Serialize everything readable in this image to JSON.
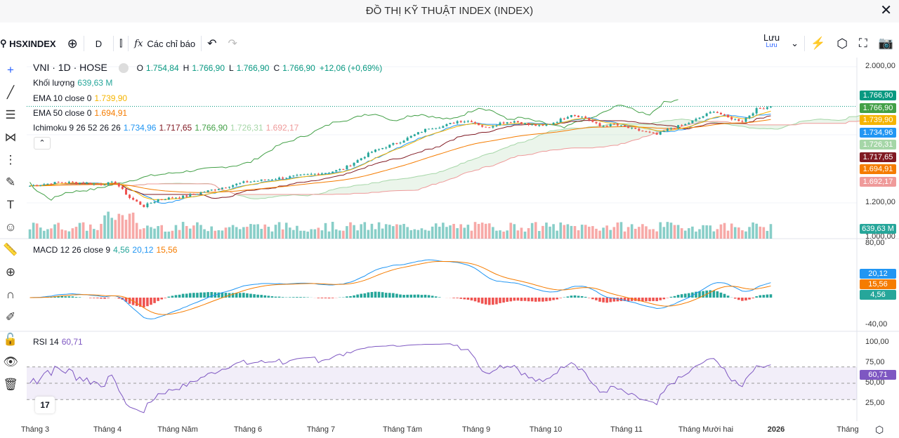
{
  "window": {
    "title": "ĐỒ THỊ KỸ THUẬT INDEX (INDEX)",
    "close": "✕"
  },
  "toolbar": {
    "symbol": "HSXINDEX",
    "interval": "D",
    "indicators": "Các chỉ báo",
    "save": "Lưu",
    "save_sub": "Lưu"
  },
  "legend": {
    "main": {
      "name": "VNI · 1D · HOSE",
      "o_label": "O",
      "o": "1.754,84",
      "h_label": "H",
      "h": "1.766,90",
      "l_label": "L",
      "l": "1.766,90",
      "c_label": "C",
      "c": "1.766,90",
      "change": "+12,06 (+0,69%)"
    },
    "volume": {
      "name": "Khối lượng",
      "value": "639,63 M"
    },
    "ema10": {
      "name": "EMA 10 close 0",
      "value": "1.739,90"
    },
    "ema50": {
      "name": "EMA 50 close 0",
      "value": "1.694,91"
    },
    "ichimoku": {
      "name": "Ichimoku 9 26 52 26 26",
      "v1": "1.734,96",
      "v2": "1.717,65",
      "v3": "1.766,90",
      "v4": "1.726,31",
      "v5": "1.692,17"
    },
    "macd": {
      "name": "MACD 12 26 close 9",
      "v1": "4,56",
      "v2": "20,12",
      "v3": "15,56"
    },
    "rsi": {
      "name": "RSI 14",
      "value": "60,71"
    }
  },
  "colors": {
    "up": "#26a69a",
    "down": "#ef5350",
    "ema10": "#f5b400",
    "ema50": "#f57c00",
    "conv": "#2196f3",
    "base": "#801922",
    "lag": "#43a047",
    "spanA": "#a5d6a7",
    "spanB": "#ef9a9a",
    "rsi": "#7e57c2"
  },
  "price_labels": [
    {
      "v": "1.766,90",
      "c": "#089981"
    },
    {
      "v": "1.766,90",
      "c": "#43a047"
    },
    {
      "v": "1.739,90",
      "c": "#f5b400"
    },
    {
      "v": "1.734,96",
      "c": "#2196f3"
    },
    {
      "v": "1.726,31",
      "c": "#a5d6a7"
    },
    {
      "v": "1.717,65",
      "c": "#801922"
    },
    {
      "v": "1.694,91",
      "c": "#f57c00"
    },
    {
      "v": "1.692,17",
      "c": "#ef9a9a"
    }
  ],
  "volume_label": "639,63 M",
  "macd_labels": [
    {
      "v": "20,12",
      "c": "#2196f3"
    },
    {
      "v": "15,56",
      "c": "#f57c00"
    },
    {
      "v": "4,56",
      "c": "#26a69a"
    }
  ],
  "rsi_label": "60,71",
  "chart_data": {
    "type": "candlestick",
    "price_axis": {
      "ticks": [
        "2.000,00",
        "1.200,00",
        "1.000,00"
      ],
      "values": [
        2000,
        1200,
        1000
      ],
      "range": [
        1000,
        2000
      ]
    },
    "macd_axis": {
      "ticks": [
        "80,00",
        "-40,00"
      ],
      "values": [
        80,
        -40
      ]
    },
    "rsi_axis": {
      "ticks": [
        "100,00",
        "75,00",
        "50,00",
        "25,00"
      ],
      "values": [
        100,
        75,
        50,
        25
      ],
      "band": [
        30,
        70
      ]
    },
    "x_ticks": [
      "Tháng 3",
      "Tháng 4",
      "Tháng Năm",
      "Tháng 6",
      "Tháng 7",
      "Tháng Tám",
      "Tháng 9",
      "Tháng 10",
      "Tháng 11",
      "Tháng Mười hai",
      "2026",
      "Tháng"
    ],
    "weekly_close": [
      1300,
      1310,
      1320,
      1320,
      1315,
      1310,
      1320,
      1230,
      1180,
      1220,
      1230,
      1240,
      1260,
      1280,
      1300,
      1320,
      1330,
      1340,
      1350,
      1360,
      1370,
      1380,
      1400,
      1450,
      1500,
      1530,
      1560,
      1600,
      1640,
      1650,
      1680,
      1680,
      1640,
      1670,
      1680,
      1660,
      1650,
      1680,
      1720,
      1700,
      1650,
      1660,
      1640,
      1620,
      1600,
      1640,
      1660,
      1700,
      1740,
      1700,
      1680,
      1750,
      1766.9
    ]
  }
}
